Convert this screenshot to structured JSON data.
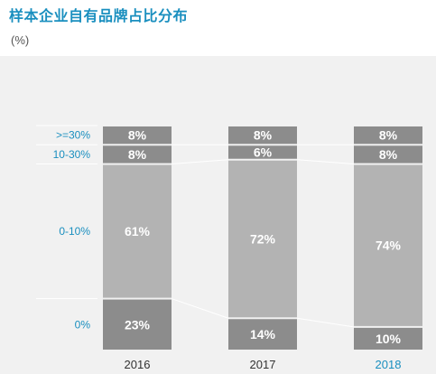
{
  "title": "样本企业自有品牌占比分布",
  "unit": "(%)",
  "colors": {
    "title": "#1a8fbf",
    "category_label": "#1a8fbf",
    "year_label": "#333333",
    "year_label_highlight": "#1a8fbf",
    "segment_dark": "#8c8c8c",
    "segment_light": "#b3b3b3",
    "segment_text": "#ffffff",
    "background": "#f1f1f1"
  },
  "chart_data": {
    "type": "bar",
    "stacked": true,
    "normalized": true,
    "categories": [
      "2016",
      "2017",
      "2018"
    ],
    "highlighted_category": "2018",
    "series": [
      {
        "name": "0%",
        "values": [
          23,
          14,
          10
        ],
        "labels": [
          "23%",
          "14%",
          "10%"
        ],
        "color": "#8c8c8c"
      },
      {
        "name": "0-10%",
        "values": [
          61,
          72,
          74
        ],
        "labels": [
          "61%",
          "72%",
          "74%"
        ],
        "color": "#b3b3b3"
      },
      {
        "name": "10-30%",
        "values": [
          8,
          6,
          8
        ],
        "labels": [
          "8%",
          "6%",
          "8%"
        ],
        "color": "#8c8c8c"
      },
      {
        "name": ">=30%",
        "values": [
          8,
          8,
          8
        ],
        "labels": [
          "8%",
          "8%",
          "8%"
        ],
        "color": "#8c8c8c"
      }
    ],
    "ylim": [
      0,
      100
    ],
    "grid": false,
    "legend": "left"
  }
}
